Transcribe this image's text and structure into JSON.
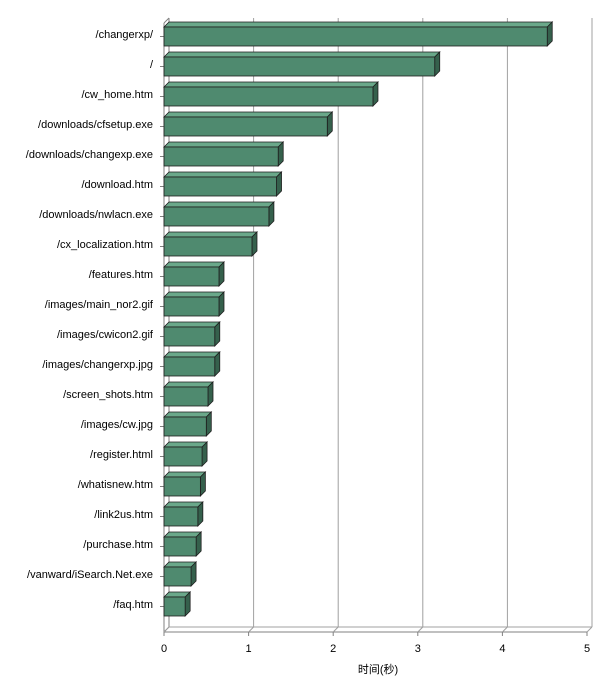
{
  "colors": {
    "bar_front": "#4f8a6f",
    "bar_top": "#6aa88a",
    "bar_side": "#35604c",
    "grid": "#a0a0a0",
    "axis": "#808080",
    "edge": "#1e1e1e"
  },
  "chart_data": {
    "type": "bar",
    "orientation": "horizontal",
    "style": "3d",
    "title": "",
    "xlabel": "时间(秒)",
    "ylabel": "",
    "xlim": [
      0,
      5
    ],
    "xticks": [
      "0",
      "1",
      "2",
      "3",
      "4",
      "5"
    ],
    "grid": "vertical",
    "legend": "none",
    "categories": [
      "/changerxp/",
      "/",
      "/cw_home.htm",
      "/downloads/cfsetup.exe",
      "/downloads/changexp.exe",
      "/download.htm",
      "/downloads/nwlacn.exe",
      "/cx_localization.htm",
      "/features.htm",
      "/images/main_nor2.gif",
      "/images/cwicon2.gif",
      "/images/changerxp.jpg",
      "/screen_shots.htm",
      "/images/cw.jpg",
      "/register.html",
      "/whatisnew.htm",
      "/link2us.htm",
      "/purchase.htm",
      "/vanward/iSearch.Net.exe",
      "/faq.htm"
    ],
    "values": [
      4.53,
      3.2,
      2.47,
      1.93,
      1.35,
      1.33,
      1.24,
      1.04,
      0.65,
      0.65,
      0.6,
      0.6,
      0.52,
      0.5,
      0.45,
      0.43,
      0.4,
      0.38,
      0.32,
      0.25
    ]
  }
}
